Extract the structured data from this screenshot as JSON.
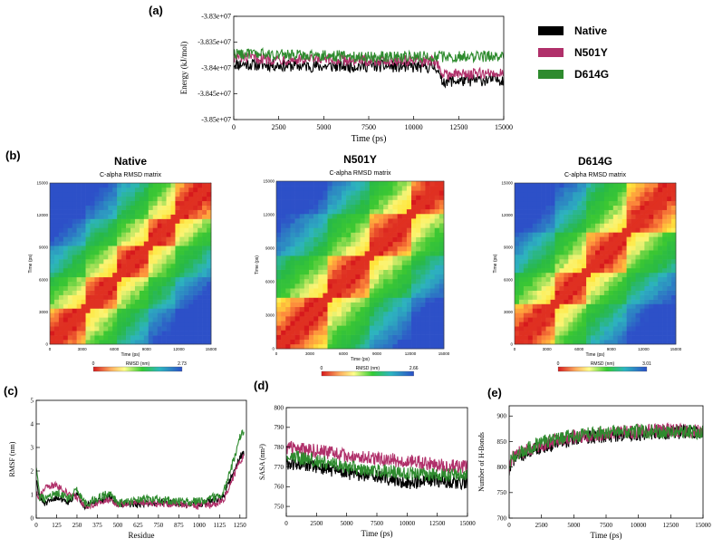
{
  "panels": {
    "a": "(a)",
    "b": "(b)",
    "c": "(c)",
    "d": "(d)",
    "e": "(e)"
  },
  "legend": [
    {
      "label": "Native",
      "color": "#000000"
    },
    {
      "label": "N501Y",
      "color": "#b0306a"
    },
    {
      "label": "D614G",
      "color": "#2e8b2e"
    }
  ],
  "chart_data": [
    {
      "id": "energy",
      "type": "line",
      "title": "",
      "xlabel": "Time (ps)",
      "ylabel": "Energy (kJ/mol)",
      "xlim": [
        0,
        15000
      ],
      "ylim": [
        -38500000,
        -38300000
      ],
      "xticks": [
        0,
        2500,
        5000,
        7500,
        10000,
        12500,
        15000
      ],
      "yticks": [
        "-3.83e+07",
        "-3.835e+07",
        "-3.84e+07",
        "-3.845e+07",
        "-3.85e+07"
      ],
      "ytick_values": [
        -38300000,
        -38350000,
        -38400000,
        -38450000,
        -38500000
      ],
      "series": [
        {
          "name": "Native",
          "color": "#000000",
          "x": [
            0,
            2500,
            5000,
            7500,
            10000,
            11300,
            11500,
            12500,
            15000
          ],
          "values": [
            -38392000,
            -38395000,
            -38397000,
            -38396000,
            -38398000,
            -38398000,
            -38425000,
            -38425000,
            -38422000
          ],
          "noise": 12000
        },
        {
          "name": "N501Y",
          "color": "#b0306a",
          "x": [
            0,
            2500,
            5000,
            7500,
            10000,
            11300,
            11500,
            12500,
            15000
          ],
          "values": [
            -38380000,
            -38383000,
            -38385000,
            -38385000,
            -38386000,
            -38387000,
            -38412000,
            -38412000,
            -38410000
          ],
          "noise": 11000
        },
        {
          "name": "D614G",
          "color": "#2e8b2e",
          "x": [
            0,
            2500,
            5000,
            7500,
            10000,
            12500,
            15000
          ],
          "values": [
            -38372000,
            -38374000,
            -38376000,
            -38378000,
            -38378000,
            -38378000,
            -38377000
          ],
          "noise": 11000
        }
      ]
    },
    {
      "id": "rmsd-native",
      "type": "heatmap",
      "title": "Native",
      "subtitle": "C-alpha RMSD matrix",
      "xlabel": "Time (ps)",
      "ylabel": "Time (ps)",
      "xticks": [
        "0",
        "3000",
        "6000",
        "9000",
        "12000",
        "15000"
      ],
      "yticks": [
        "0",
        "3000",
        "6000",
        "9000",
        "12000",
        "15000"
      ],
      "colorbar": {
        "min": "0",
        "label": "RMSD (nm)",
        "max": "2.73"
      },
      "blocks": [
        0,
        0.22,
        0.42,
        0.62,
        0.78,
        1.0
      ]
    },
    {
      "id": "rmsd-n501y",
      "type": "heatmap",
      "title": "N501Y",
      "subtitle": "C-alpha RMSD matrix",
      "xlabel": "Time (ps)",
      "ylabel": "Time (ps)",
      "xticks": [
        "0",
        "3000",
        "6000",
        "9000",
        "12000",
        "15000"
      ],
      "yticks": [
        "0",
        "3000",
        "6000",
        "9000",
        "12000",
        "15000"
      ],
      "colorbar": {
        "min": "0",
        "label": "RMSD (nm)",
        "max": "2.66"
      },
      "blocks": [
        0,
        0.3,
        0.55,
        0.8,
        1.0
      ]
    },
    {
      "id": "rmsd-d614g",
      "type": "heatmap",
      "title": "D614G",
      "subtitle": "C-alpha RMSD matrix",
      "xlabel": "Time (ps)",
      "ylabel": "Time (ps)",
      "xticks": [
        "0",
        "3000",
        "6000",
        "9000",
        "12000",
        "15000"
      ],
      "yticks": [
        "0",
        "3000",
        "6000",
        "9000",
        "12000",
        "15000"
      ],
      "colorbar": {
        "min": "0",
        "label": "RMSD (nm)",
        "max": "3.01"
      },
      "blocks": [
        0,
        0.25,
        0.45,
        0.7,
        1.0
      ]
    },
    {
      "id": "rmsf",
      "type": "line",
      "xlabel": "Residue",
      "ylabel": "RMSF (nm)",
      "xlim": [
        0,
        1290
      ],
      "ylim": [
        0,
        5
      ],
      "xticks": [
        0,
        125,
        250,
        375,
        500,
        625,
        750,
        875,
        1000,
        1125,
        1250
      ],
      "yticks": [
        0,
        1,
        2,
        3,
        4,
        5
      ],
      "series": [
        {
          "name": "Native",
          "color": "#000000",
          "x": [
            0,
            20,
            60,
            125,
            200,
            250,
            300,
            375,
            450,
            500,
            625,
            750,
            875,
            1000,
            1100,
            1150,
            1200,
            1250,
            1275
          ],
          "values": [
            1.6,
            0.8,
            0.6,
            0.9,
            0.7,
            1.0,
            0.5,
            0.7,
            0.9,
            0.6,
            0.6,
            0.7,
            0.6,
            0.6,
            0.8,
            0.9,
            1.8,
            2.6,
            2.8
          ],
          "noise": 0.15
        },
        {
          "name": "N501Y",
          "color": "#b0306a",
          "x": [
            0,
            20,
            60,
            125,
            200,
            250,
            300,
            375,
            450,
            500,
            625,
            750,
            875,
            1000,
            1100,
            1150,
            1200,
            1250,
            1275
          ],
          "values": [
            1.1,
            0.9,
            1.3,
            1.4,
            1.0,
            0.9,
            0.5,
            0.6,
            0.8,
            0.6,
            0.7,
            0.6,
            0.6,
            0.5,
            0.6,
            0.8,
            1.6,
            2.4,
            2.6
          ],
          "noise": 0.15
        },
        {
          "name": "D614G",
          "color": "#2e8b2e",
          "x": [
            0,
            20,
            60,
            125,
            200,
            250,
            300,
            375,
            450,
            500,
            625,
            750,
            875,
            1000,
            1100,
            1150,
            1200,
            1250,
            1275
          ],
          "values": [
            2.2,
            0.9,
            0.8,
            1.1,
            0.8,
            1.2,
            0.6,
            0.8,
            1.1,
            0.6,
            0.8,
            0.8,
            0.7,
            0.7,
            0.9,
            1.1,
            2.2,
            3.4,
            3.7
          ],
          "noise": 0.18
        }
      ]
    },
    {
      "id": "sasa",
      "type": "line",
      "xlabel": "Time (ps)",
      "ylabel": "SASA (nm²)",
      "xlim": [
        0,
        15000
      ],
      "ylim": [
        745,
        800
      ],
      "xticks": [
        0,
        2500,
        5000,
        7500,
        10000,
        12500,
        15000
      ],
      "yticks": [
        750,
        760,
        770,
        780,
        790,
        800
      ],
      "series": [
        {
          "name": "Native",
          "color": "#000000",
          "x": [
            0,
            2500,
            5000,
            7500,
            10000,
            12500,
            15000
          ],
          "values": [
            772,
            770,
            767,
            765,
            762,
            763,
            762
          ],
          "noise": 3.5
        },
        {
          "name": "N501Y",
          "color": "#b0306a",
          "x": [
            0,
            2500,
            5000,
            7500,
            10000,
            12500,
            15000
          ],
          "values": [
            780,
            778,
            776,
            774,
            773,
            771,
            770
          ],
          "noise": 3.5
        },
        {
          "name": "D614G",
          "color": "#2e8b2e",
          "x": [
            0,
            2500,
            5000,
            7500,
            10000,
            12500,
            15000
          ],
          "values": [
            776,
            773,
            770,
            768,
            767,
            766,
            766
          ],
          "noise": 3.5
        }
      ]
    },
    {
      "id": "hbonds",
      "type": "line",
      "xlabel": "Time (ps)",
      "ylabel": "Number of H-Bonds",
      "xlim": [
        0,
        15000
      ],
      "ylim": [
        700,
        920
      ],
      "xticks": [
        0,
        2500,
        5000,
        7500,
        10000,
        12500,
        15000
      ],
      "yticks": [
        700,
        750,
        800,
        850,
        900
      ],
      "series": [
        {
          "name": "Native",
          "color": "#000000",
          "x": [
            0,
            300,
            1000,
            2500,
            5000,
            7500,
            10000,
            12500,
            15000
          ],
          "values": [
            790,
            815,
            825,
            840,
            855,
            862,
            865,
            868,
            868
          ],
          "noise": 14
        },
        {
          "name": "N501Y",
          "color": "#b0306a",
          "x": [
            0,
            300,
            1000,
            2500,
            5000,
            7500,
            10000,
            12500,
            15000
          ],
          "values": [
            795,
            820,
            830,
            845,
            860,
            866,
            870,
            872,
            870
          ],
          "noise": 14
        },
        {
          "name": "D614G",
          "color": "#2e8b2e",
          "x": [
            0,
            300,
            1000,
            2500,
            5000,
            7500,
            10000,
            12500,
            15000
          ],
          "values": [
            800,
            822,
            832,
            848,
            862,
            868,
            870,
            870,
            868
          ],
          "noise": 14
        }
      ]
    }
  ]
}
